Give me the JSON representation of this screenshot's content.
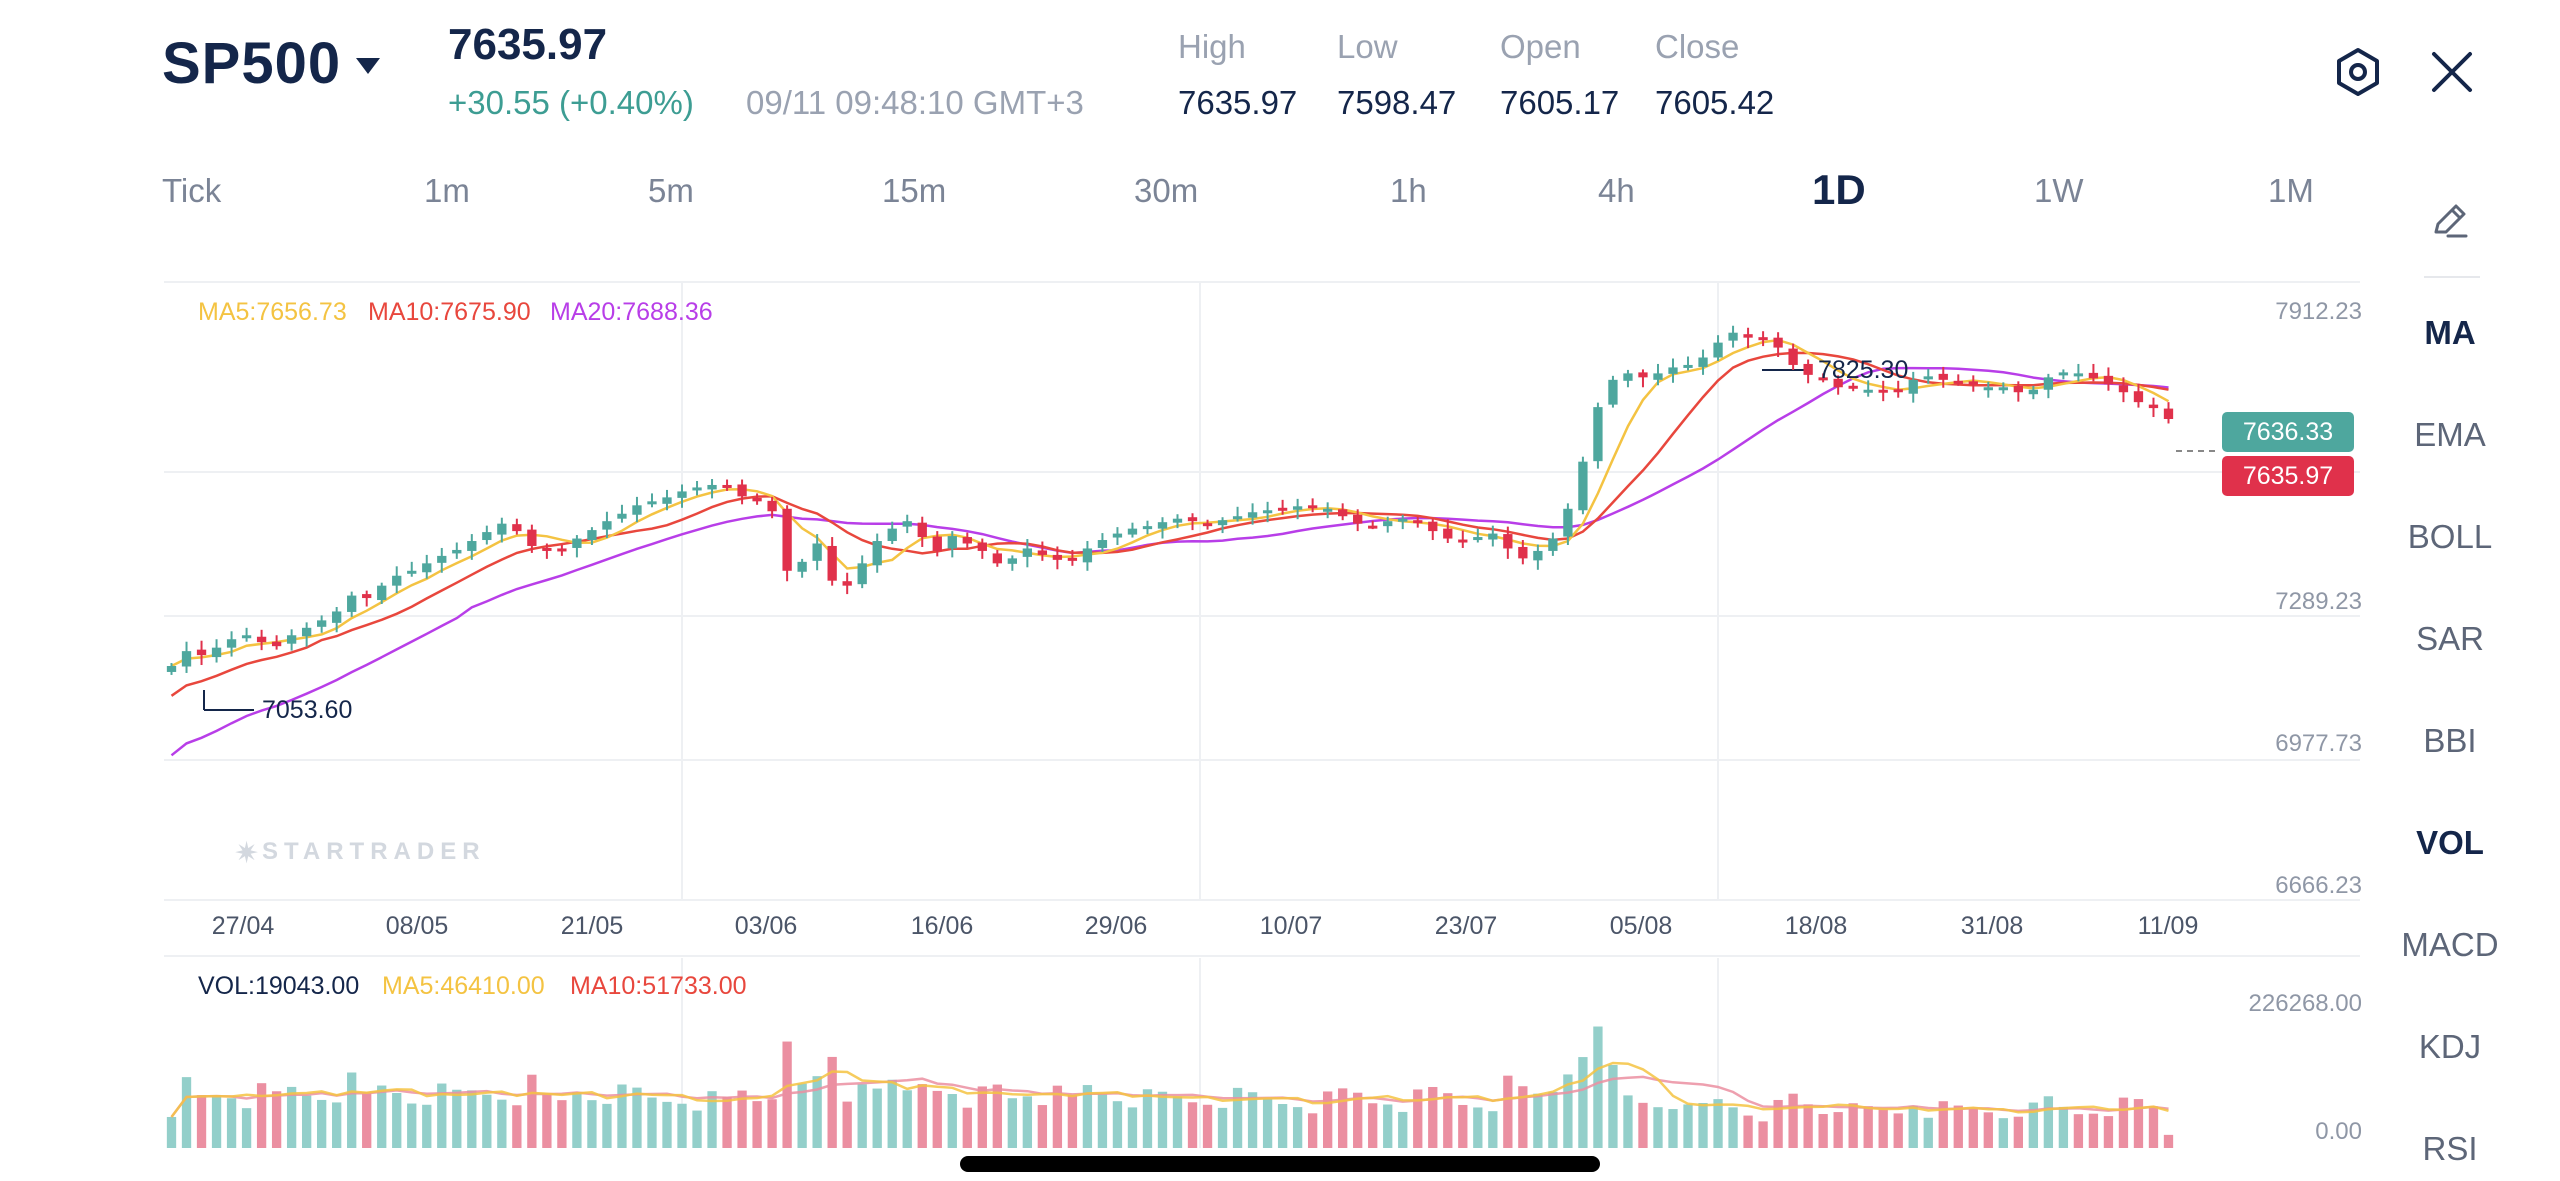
{
  "header": {
    "symbol": "SP500",
    "price": "7635.97",
    "change": "+30.55 (+0.40%)",
    "timestamp": "09/11 09:48:10 GMT+3",
    "ohlc": [
      {
        "label": "High",
        "value": "7635.97"
      },
      {
        "label": "Low",
        "value": "7598.47"
      },
      {
        "label": "Open",
        "value": "7605.17"
      },
      {
        "label": "Close",
        "value": "7605.42"
      }
    ],
    "settings_icon": "hexagon-settings-icon",
    "close_icon": "close-icon"
  },
  "timeframes": [
    "Tick",
    "1m",
    "5m",
    "15m",
    "30m",
    "1h",
    "4h",
    "1D",
    "1W",
    "1M"
  ],
  "active_timeframe": "1D",
  "indicators": [
    "MA",
    "EMA",
    "BOLL",
    "SAR",
    "BBI",
    "VOL",
    "MACD",
    "KDJ",
    "RSI"
  ],
  "active_indicators": [
    "MA",
    "VOL"
  ],
  "legend": {
    "ma5": "MA5:7656.73",
    "ma10": "MA10:7675.90",
    "ma20": "MA20:7688.36"
  },
  "volume_legend": {
    "vol": "VOL:19043.00",
    "ma5": "MA5:46410.00",
    "ma10": "MA10:51733.00"
  },
  "watermark": "STARTRADER",
  "colors": {
    "up": "#4ea79e",
    "down": "#e0314b",
    "vol_up": "#93cfca",
    "vol_down": "#eb8fa1",
    "ma5": "#f4c342",
    "ma10": "#e8473d",
    "ma20": "#b83ee8",
    "text_dark": "#14264a"
  },
  "chart_data": {
    "type": "candlestick",
    "y_axis_labels": [
      "7912.23",
      "7289.23",
      "6977.73",
      "6666.23"
    ],
    "ylim": [
      6666.23,
      7912.23
    ],
    "x_axis_labels": [
      "27/04",
      "08/05",
      "21/05",
      "03/06",
      "16/06",
      "29/06",
      "10/07",
      "23/07",
      "05/08",
      "18/08",
      "31/08",
      "11/09"
    ],
    "price_tags": {
      "bid": "7636.33",
      "last": "7635.97"
    },
    "annotations": {
      "high": "7825.30",
      "low": "7053.60"
    },
    "closes": [
      7138,
      7168,
      7160,
      7175,
      7192,
      7200,
      7186,
      7178,
      7200,
      7215,
      7230,
      7248,
      7280,
      7275,
      7300,
      7320,
      7330,
      7345,
      7360,
      7372,
      7390,
      7408,
      7425,
      7410,
      7380,
      7375,
      7372,
      7395,
      7412,
      7430,
      7445,
      7462,
      7470,
      7478,
      7490,
      7498,
      7503,
      7500,
      7480,
      7470,
      7450,
      7330,
      7348,
      7385,
      7310,
      7300,
      7345,
      7390,
      7415,
      7430,
      7398,
      7370,
      7400,
      7385,
      7370,
      7345,
      7355,
      7375,
      7362,
      7352,
      7350,
      7375,
      7392,
      7405,
      7415,
      7420,
      7428,
      7435,
      7430,
      7422,
      7432,
      7440,
      7448,
      7452,
      7455,
      7460,
      7458,
      7455,
      7440,
      7425,
      7420,
      7430,
      7435,
      7428,
      7410,
      7395,
      7392,
      7398,
      7405,
      7375,
      7355,
      7370,
      7395,
      7455,
      7550,
      7660,
      7715,
      7728,
      7720,
      7728,
      7740,
      7745,
      7760,
      7790,
      7810,
      7800,
      7795,
      7780,
      7745,
      7725,
      7718,
      7700,
      7698,
      7695,
      7692,
      7690,
      7715,
      7722,
      7715,
      7710,
      7705,
      7700,
      7700,
      7690,
      7695,
      7720,
      7730,
      7728,
      7718,
      7706,
      7690,
      7670,
      7658,
      7636
    ],
    "volume_max": 226268.0,
    "volume_labels": [
      "226268.00",
      "0.00"
    ]
  }
}
